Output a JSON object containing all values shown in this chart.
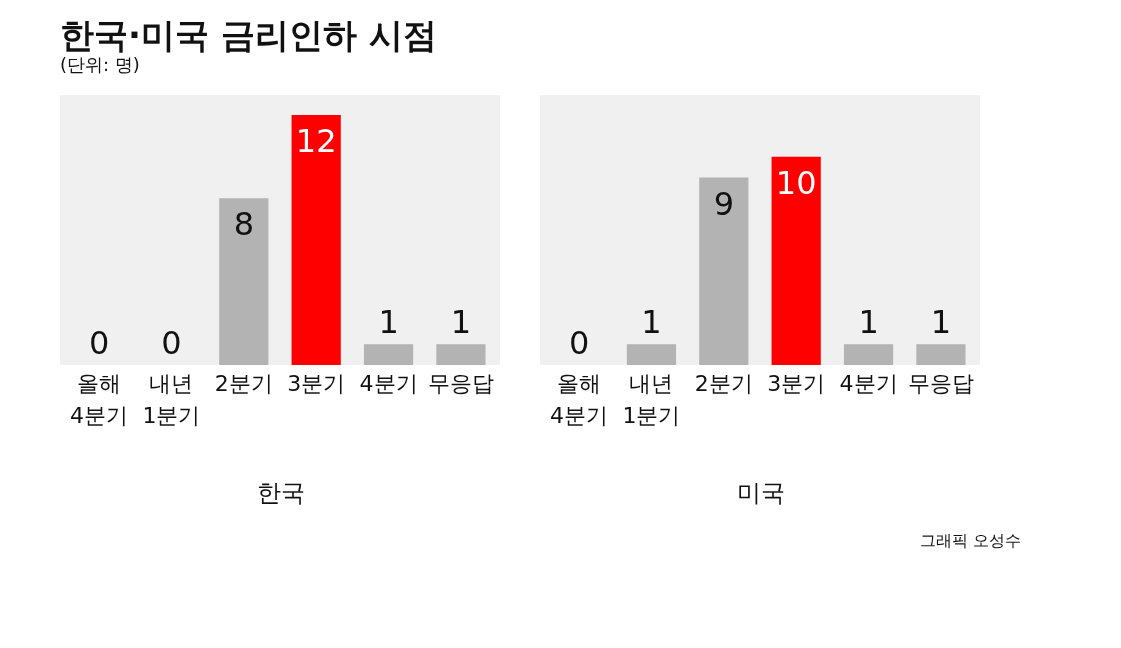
{
  "chart_data": [
    {
      "type": "bar",
      "title": "한국·미국 금리인하 시점",
      "subtitle": "(단위: 명)",
      "xlabel": "한국",
      "categories": [
        "올해 4분기",
        "내년 1분기",
        "2분기",
        "3분기",
        "4분기",
        "무응답"
      ],
      "values": [
        0,
        0,
        8,
        12,
        1,
        1
      ],
      "colors": [
        "#b3b3b3",
        "#b3b3b3",
        "#b3b3b3",
        "#ff0000",
        "#b3b3b3",
        "#b3b3b3"
      ],
      "data_labels": true
    },
    {
      "type": "bar",
      "xlabel": "미국",
      "categories": [
        "올해 4분기",
        "내년 1분기",
        "2분기",
        "3분기",
        "4분기",
        "무응답"
      ],
      "values": [
        0,
        1,
        9,
        10,
        1,
        1
      ],
      "colors": [
        "#b3b3b3",
        "#b3b3b3",
        "#b3b3b3",
        "#ff0000",
        "#b3b3b3",
        "#b3b3b3"
      ],
      "data_labels": true,
      "annotations": [
        "그래픽 오성수"
      ]
    }
  ]
}
